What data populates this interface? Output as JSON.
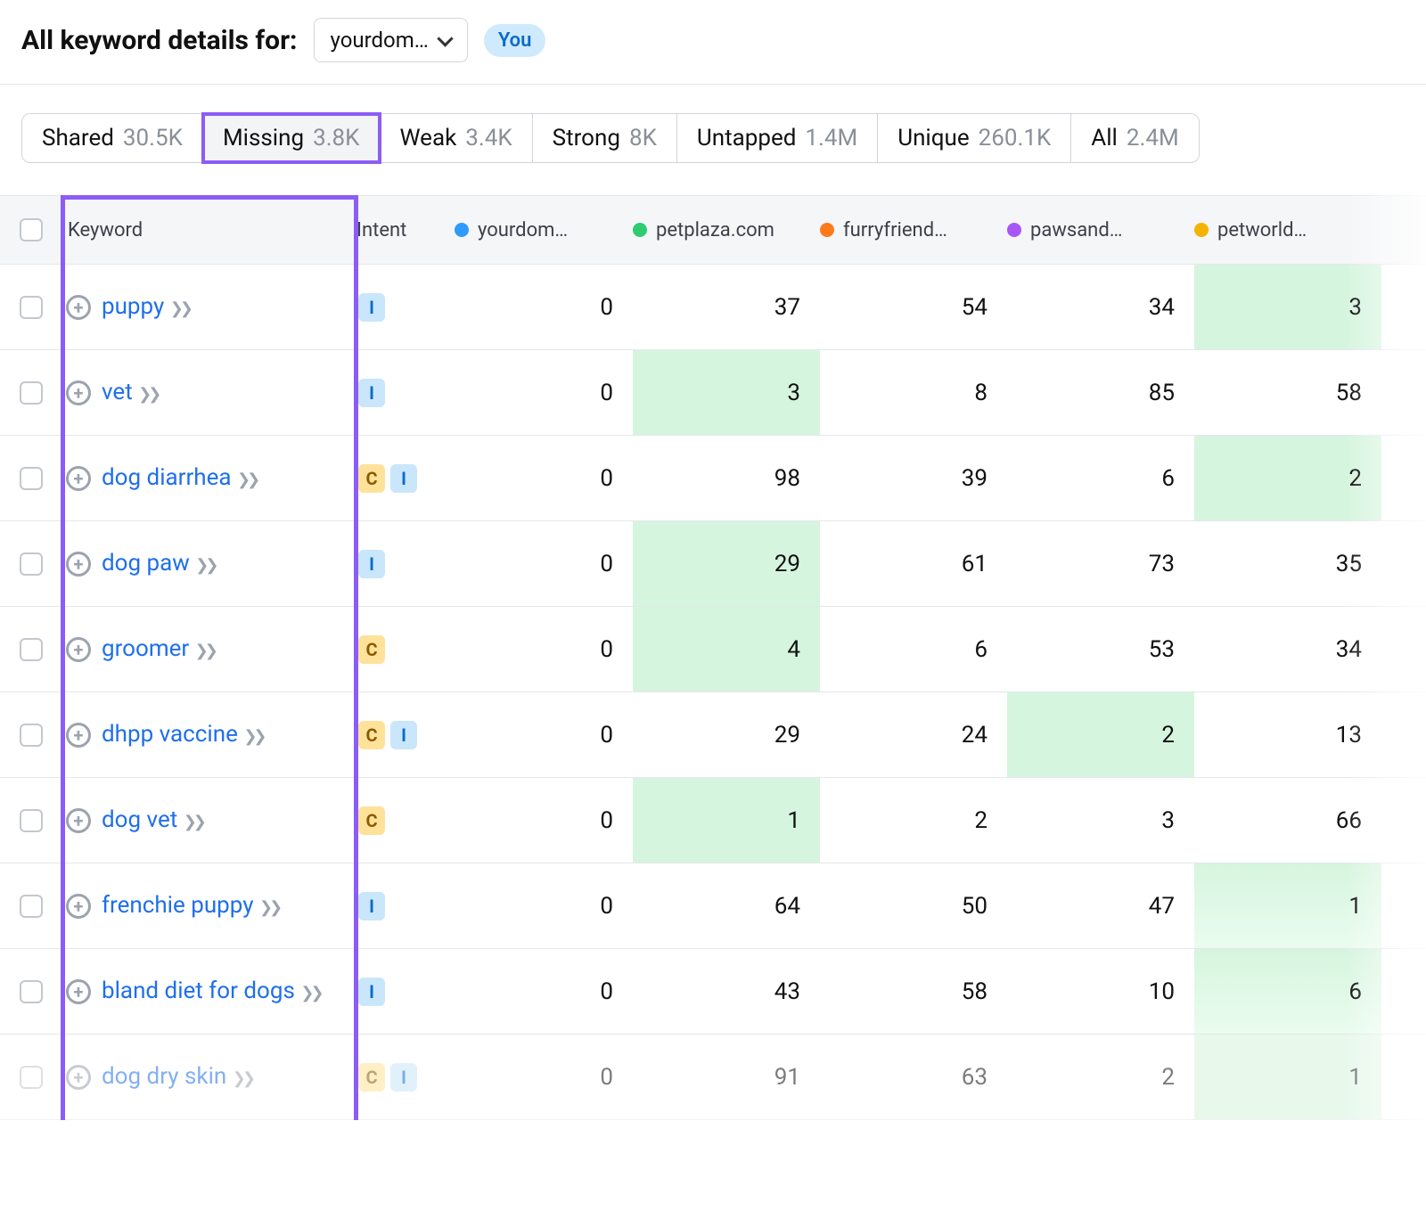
{
  "header": {
    "title": "All keyword details for:",
    "domain_label": "yourdom…",
    "you_label": "You"
  },
  "tabs": [
    {
      "label": "Shared",
      "count": "30.5K",
      "active": false
    },
    {
      "label": "Missing",
      "count": "3.8K",
      "active": true
    },
    {
      "label": "Weak",
      "count": "3.4K",
      "active": false
    },
    {
      "label": "Strong",
      "count": "8K",
      "active": false
    },
    {
      "label": "Untapped",
      "count": "1.4M",
      "active": false
    },
    {
      "label": "Unique",
      "count": "260.1K",
      "active": false
    },
    {
      "label": "All",
      "count": "2.4M",
      "active": false
    }
  ],
  "columns": {
    "keyword_header": "Keyword",
    "intent_header": "Intent",
    "competitors": [
      {
        "label": "yourdom…",
        "color": "#2f9bff"
      },
      {
        "label": "petplaza.com",
        "color": "#2ecc71"
      },
      {
        "label": "furryfriend…",
        "color": "#ff7a1a"
      },
      {
        "label": "pawsand…",
        "color": "#a855f7"
      },
      {
        "label": "petworld…",
        "color": "#f5b301"
      }
    ]
  },
  "intent_colors": {
    "I": {
      "bg": "#c9e6fb",
      "fg": "#0b6bcb"
    },
    "C": {
      "bg": "#ffe29a",
      "fg": "#8a5a00"
    }
  },
  "highlight_color": "#d6f5de",
  "purple_outline": "#8b5cf6",
  "rows": [
    {
      "keyword": "puppy",
      "intents": [
        "I"
      ],
      "vals": [
        "0",
        "37",
        "54",
        "34",
        "3"
      ],
      "hl": [
        4
      ]
    },
    {
      "keyword": "vet",
      "intents": [
        "I"
      ],
      "vals": [
        "0",
        "3",
        "8",
        "85",
        "58"
      ],
      "hl": [
        1
      ]
    },
    {
      "keyword": "dog diarrhea",
      "intents": [
        "C",
        "I"
      ],
      "vals": [
        "0",
        "98",
        "39",
        "6",
        "2"
      ],
      "hl": [
        4
      ]
    },
    {
      "keyword": "dog paw",
      "intents": [
        "I"
      ],
      "vals": [
        "0",
        "29",
        "61",
        "73",
        "35"
      ],
      "hl": [
        1
      ]
    },
    {
      "keyword": "groomer",
      "intents": [
        "C"
      ],
      "vals": [
        "0",
        "4",
        "6",
        "53",
        "34"
      ],
      "hl": [
        1
      ]
    },
    {
      "keyword": "dhpp vaccine",
      "intents": [
        "C",
        "I"
      ],
      "vals": [
        "0",
        "29",
        "24",
        "2",
        "13"
      ],
      "hl": [
        3
      ]
    },
    {
      "keyword": "dog vet",
      "intents": [
        "C"
      ],
      "vals": [
        "0",
        "1",
        "2",
        "3",
        "66"
      ],
      "hl": [
        1
      ]
    },
    {
      "keyword": "frenchie puppy",
      "intents": [
        "I"
      ],
      "vals": [
        "0",
        "64",
        "50",
        "47",
        "1"
      ],
      "hl": [
        4
      ],
      "hlfade": true
    },
    {
      "keyword": "bland diet for dogs",
      "intents": [
        "I"
      ],
      "vals": [
        "0",
        "43",
        "58",
        "10",
        "6"
      ],
      "hl": [
        4
      ],
      "hlfade": true
    },
    {
      "keyword": "dog dry skin",
      "intents": [
        "C",
        "I"
      ],
      "vals": [
        "0",
        "91",
        "63",
        "2",
        "1"
      ],
      "hl": [
        4
      ],
      "faded": true
    }
  ]
}
